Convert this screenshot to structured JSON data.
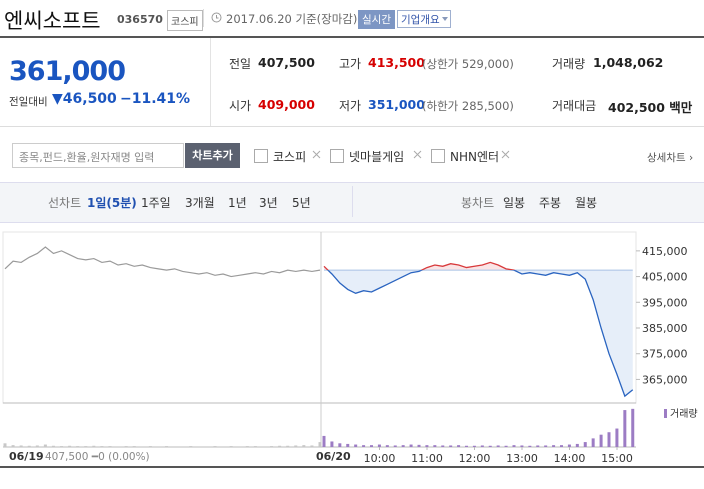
{
  "header": {
    "name": "엔씨소프트",
    "code": "036570",
    "market": "코스피",
    "date": "2017.06.20 기준(장마감)",
    "realtime": "실시간",
    "company_info": "기업개요"
  },
  "price": {
    "current": "361,000",
    "change_label": "전일대비",
    "change": "▼46,500",
    "change_rate": "−11.41%"
  },
  "summary": {
    "rows": [
      [
        {
          "label": "전일",
          "value": "407,500"
        },
        {
          "label": "고가",
          "value": "413,500",
          "note": "(상한가 529,000)"
        },
        {
          "label": "거래량",
          "value": "1,048,062"
        }
      ],
      [
        {
          "label": "시가",
          "value": "409,000"
        },
        {
          "label": "저가",
          "value": "351,000",
          "note": "(하한가 285,500)"
        },
        {
          "label": "거래대금",
          "value": "402,500 백만"
        }
      ]
    ]
  },
  "compare": {
    "placeholder": "종목,펀드,환율,원자재명 입력",
    "add_button": "차트추가",
    "items": [
      "코스피",
      "넷마블게임",
      "NHN엔터"
    ],
    "detail": "상세차트 ›"
  },
  "tabs": {
    "line_label": "선차트",
    "line_tabs": [
      "1일(5분)",
      "1주일",
      "3개월",
      "1년",
      "3년",
      "5년"
    ],
    "candle_label": "봉차트",
    "candle_tabs": [
      "일봉",
      "주봉",
      "월봉"
    ]
  },
  "chart": {
    "type": "line",
    "ylim": [
      357000,
      420000
    ],
    "yticks": [
      {
        "value": 415000,
        "label": "415,000"
      },
      {
        "value": 405000,
        "label": "405,000"
      },
      {
        "value": 395000,
        "label": "395,000"
      },
      {
        "value": 385000,
        "label": "385,000"
      },
      {
        "value": 375000,
        "label": "375,000"
      },
      {
        "value": 365000,
        "label": "365,000"
      }
    ],
    "reference": 407500,
    "prev_day": {
      "label": "06/19",
      "summary": "407,500 ━0 (0.00%)",
      "color": "#9a9a9a",
      "values": [
        408000,
        411000,
        410500,
        412500,
        414000,
        416500,
        414000,
        415000,
        413500,
        412000,
        411500,
        412000,
        410500,
        411000,
        409500,
        410000,
        409000,
        409500,
        408500,
        408000,
        407500,
        408000,
        407000,
        406500,
        406000,
        406500,
        405500,
        406000,
        405000,
        405500,
        406000,
        406500,
        406000,
        407000,
        406500,
        407500,
        407000,
        407500,
        407000,
        407500
      ]
    },
    "today": {
      "label": "06/20",
      "color": "#2a64c0",
      "up_color": "#d8393b",
      "x": [
        "09:00",
        "09:10",
        "09:20",
        "09:30",
        "09:40",
        "09:50",
        "10:00",
        "10:10",
        "10:20",
        "10:30",
        "10:40",
        "10:50",
        "11:00",
        "11:10",
        "11:20",
        "11:30",
        "11:40",
        "11:50",
        "12:00",
        "12:10",
        "12:20",
        "12:30",
        "12:40",
        "12:50",
        "13:00",
        "13:10",
        "13:20",
        "13:30",
        "13:40",
        "13:50",
        "14:00",
        "14:10",
        "14:20",
        "14:30",
        "14:40",
        "14:50",
        "15:00",
        "15:10",
        "15:20",
        "15:30"
      ],
      "values": [
        409000,
        406000,
        402500,
        400000,
        398500,
        399500,
        399000,
        400500,
        402000,
        403500,
        405000,
        406500,
        407000,
        408500,
        409500,
        409000,
        410000,
        409500,
        408500,
        409000,
        409500,
        410500,
        409500,
        408000,
        407500,
        406000,
        406500,
        406000,
        405500,
        406500,
        406000,
        405500,
        406500,
        404000,
        396000,
        385000,
        375000,
        367000,
        358500,
        361000
      ]
    },
    "xticks": [
      "10:00",
      "11:00",
      "12:00",
      "13:00",
      "14:00",
      "15:00"
    ],
    "volume": {
      "legend": "거래량",
      "color": "#9c7cc4",
      "ylim": [
        0,
        65000
      ],
      "prev_values": [
        6000,
        3000,
        2500,
        2000,
        2500,
        4000,
        2000,
        1500,
        2000,
        1500,
        1500,
        2000,
        1500,
        1500,
        1000,
        1500,
        1500,
        1000,
        1500,
        1000,
        1500,
        1000,
        1000,
        1500,
        1000,
        1000,
        1500,
        1000,
        1500,
        1000,
        1500,
        1500,
        1000,
        1500,
        2000,
        2000,
        2500,
        3000,
        2500,
        8000
      ],
      "today_values": [
        18000,
        9000,
        6000,
        5000,
        4000,
        3000,
        3000,
        4000,
        3000,
        2500,
        3000,
        4000,
        3500,
        3000,
        3000,
        2500,
        2500,
        3000,
        2000,
        2000,
        2500,
        2000,
        2500,
        2000,
        3000,
        2500,
        2000,
        2500,
        2500,
        3000,
        3000,
        4000,
        5000,
        8000,
        14000,
        20000,
        24000,
        30000,
        60000,
        62000
      ]
    }
  }
}
